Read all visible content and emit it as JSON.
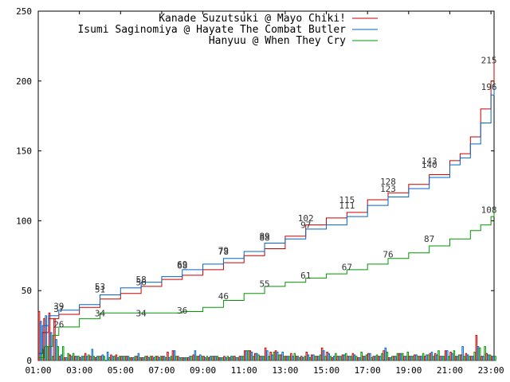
{
  "chart_data": {
    "type": "line",
    "title": "",
    "xlabel": "",
    "ylabel": "",
    "ylim": [
      0,
      250
    ],
    "xlim_hours": [
      1,
      23.15
    ],
    "y_ticks": [
      0,
      50,
      100,
      150,
      200,
      250
    ],
    "x_ticks": [
      {
        "hour": 1,
        "label": "01:00"
      },
      {
        "hour": 3,
        "label": "03:00"
      },
      {
        "hour": 5,
        "label": "05:00"
      },
      {
        "hour": 7,
        "label": "07:00"
      },
      {
        "hour": 9,
        "label": "09:00"
      },
      {
        "hour": 11,
        "label": "11:00"
      },
      {
        "hour": 13,
        "label": "13:00"
      },
      {
        "hour": 15,
        "label": "15:00"
      },
      {
        "hour": 17,
        "label": "17:00"
      },
      {
        "hour": 19,
        "label": "19:00"
      },
      {
        "hour": 21,
        "label": "21:00"
      },
      {
        "hour": 23,
        "label": "23:00"
      }
    ],
    "grid": false,
    "legend_position": "top-right",
    "series": [
      {
        "name": "Kanade Suzutsuki @ Mayo Chiki!",
        "color": "#cc0000",
        "points": [
          [
            1,
            5
          ],
          [
            1.2,
            20
          ],
          [
            1.5,
            30
          ],
          [
            2,
            33
          ],
          [
            3,
            38
          ],
          [
            4,
            44
          ],
          [
            5,
            48
          ],
          [
            6,
            53
          ],
          [
            7,
            58
          ],
          [
            8,
            61
          ],
          [
            9,
            65
          ],
          [
            10,
            70
          ],
          [
            11,
            75
          ],
          [
            12,
            80
          ],
          [
            13,
            89
          ],
          [
            14,
            97
          ],
          [
            15,
            102
          ],
          [
            16,
            106
          ],
          [
            17,
            115
          ],
          [
            18,
            120
          ],
          [
            19,
            126
          ],
          [
            20,
            133
          ],
          [
            21,
            143
          ],
          [
            21.5,
            148
          ],
          [
            22,
            160
          ],
          [
            22.5,
            180
          ],
          [
            23,
            200
          ],
          [
            23.15,
            215
          ]
        ],
        "labels": [
          {
            "hour": 2,
            "text": "39",
            "y": 39
          },
          {
            "hour": 4,
            "text": "51",
            "y": 51
          },
          {
            "hour": 6,
            "text": "58",
            "y": 58
          },
          {
            "hour": 8,
            "text": "68",
            "y": 68
          },
          {
            "hour": 10,
            "text": "79",
            "y": 79
          },
          {
            "hour": 12,
            "text": "89",
            "y": 89
          },
          {
            "hour": 14,
            "text": "102",
            "y": 102
          },
          {
            "hour": 16,
            "text": "115",
            "y": 115
          },
          {
            "hour": 18,
            "text": "128",
            "y": 128
          },
          {
            "hour": 20,
            "text": "143",
            "y": 143
          },
          {
            "hour": 22.9,
            "text": "215",
            "y": 215
          }
        ]
      },
      {
        "name": "Isumi Saginomiya @ Hayate The Combat Butler",
        "color": "#0066cc",
        "points": [
          [
            1,
            5
          ],
          [
            1.2,
            25
          ],
          [
            1.5,
            32
          ],
          [
            2,
            36
          ],
          [
            3,
            40
          ],
          [
            4,
            47
          ],
          [
            5,
            52
          ],
          [
            6,
            56
          ],
          [
            7,
            60
          ],
          [
            8,
            65
          ],
          [
            9,
            69
          ],
          [
            10,
            73
          ],
          [
            11,
            78
          ],
          [
            12,
            84
          ],
          [
            13,
            87
          ],
          [
            14,
            94
          ],
          [
            15,
            97
          ],
          [
            16,
            103
          ],
          [
            17,
            111
          ],
          [
            18,
            117
          ],
          [
            19,
            123
          ],
          [
            20,
            131
          ],
          [
            21,
            140
          ],
          [
            21.5,
            145
          ],
          [
            22,
            155
          ],
          [
            22.5,
            170
          ],
          [
            23,
            190
          ],
          [
            23.15,
            196
          ]
        ],
        "labels": [
          {
            "hour": 2,
            "text": "37",
            "y": 37
          },
          {
            "hour": 4,
            "text": "53",
            "y": 53
          },
          {
            "hour": 6,
            "text": "56",
            "y": 56
          },
          {
            "hour": 8,
            "text": "69",
            "y": 69
          },
          {
            "hour": 10,
            "text": "78",
            "y": 78
          },
          {
            "hour": 12,
            "text": "88",
            "y": 88
          },
          {
            "hour": 14,
            "text": "97",
            "y": 97
          },
          {
            "hour": 16,
            "text": "111",
            "y": 111
          },
          {
            "hour": 18,
            "text": "123",
            "y": 123
          },
          {
            "hour": 20,
            "text": "140",
            "y": 140
          },
          {
            "hour": 22.9,
            "text": "196",
            "y": 196
          }
        ]
      },
      {
        "name": "Hanyuu @ When They Cry",
        "color": "#009900",
        "points": [
          [
            1,
            2
          ],
          [
            1.3,
            10
          ],
          [
            1.7,
            18
          ],
          [
            2,
            24
          ],
          [
            3,
            30
          ],
          [
            4,
            34
          ],
          [
            5,
            34
          ],
          [
            6,
            34
          ],
          [
            7,
            34
          ],
          [
            8,
            35
          ],
          [
            9,
            38
          ],
          [
            10,
            43
          ],
          [
            11,
            48
          ],
          [
            12,
            53
          ],
          [
            13,
            56
          ],
          [
            14,
            59
          ],
          [
            15,
            62
          ],
          [
            16,
            65
          ],
          [
            17,
            69
          ],
          [
            18,
            73
          ],
          [
            19,
            77
          ],
          [
            20,
            82
          ],
          [
            21,
            87
          ],
          [
            22,
            93
          ],
          [
            22.5,
            97
          ],
          [
            23,
            103
          ],
          [
            23.15,
            108
          ]
        ],
        "labels": [
          {
            "hour": 2,
            "text": "26",
            "y": 26
          },
          {
            "hour": 4,
            "text": "34",
            "y": 34
          },
          {
            "hour": 6,
            "text": "34",
            "y": 34
          },
          {
            "hour": 8,
            "text": "36",
            "y": 36
          },
          {
            "hour": 10,
            "text": "46",
            "y": 46
          },
          {
            "hour": 12,
            "text": "55",
            "y": 55
          },
          {
            "hour": 14,
            "text": "61",
            "y": 61
          },
          {
            "hour": 16,
            "text": "67",
            "y": 67
          },
          {
            "hour": 18,
            "text": "76",
            "y": 76
          },
          {
            "hour": 20,
            "text": "87",
            "y": 87
          },
          {
            "hour": 22.9,
            "text": "108",
            "y": 108
          }
        ]
      }
    ],
    "histogram": {
      "bin_hours": 0.25,
      "start_hour": 1,
      "red": [
        35,
        30,
        34,
        30,
        3,
        2,
        4,
        3,
        2,
        5,
        3,
        2,
        3,
        0,
        4,
        4,
        3,
        3,
        2,
        3,
        2,
        3,
        3,
        3,
        3,
        6,
        7,
        3,
        2,
        2,
        4,
        3,
        3,
        2,
        3,
        2,
        3,
        2,
        3,
        3,
        7,
        7,
        5,
        3,
        9,
        6,
        7,
        4,
        3,
        5,
        3,
        3,
        6,
        4,
        3,
        9,
        6,
        2,
        3,
        4,
        3,
        5,
        2,
        3,
        5,
        3,
        3,
        7,
        2,
        3,
        5,
        3,
        3,
        4,
        3,
        3,
        5,
        5,
        3,
        7,
        6,
        3,
        4,
        5,
        3,
        18,
        3,
        5,
        3,
        52,
        14
      ],
      "blue": [
        28,
        32,
        20,
        15,
        4,
        2,
        3,
        3,
        3,
        3,
        8,
        3,
        4,
        6,
        3,
        2,
        3,
        3,
        2,
        5,
        2,
        2,
        2,
        2,
        3,
        2,
        7,
        2,
        2,
        3,
        7,
        4,
        2,
        3,
        3,
        2,
        2,
        3,
        2,
        3,
        7,
        6,
        5,
        3,
        7,
        4,
        6,
        6,
        3,
        3,
        3,
        2,
        4,
        4,
        3,
        7,
        5,
        3,
        3,
        4,
        3,
        4,
        2,
        3,
        5,
        3,
        3,
        9,
        2,
        3,
        5,
        3,
        3,
        4,
        3,
        4,
        6,
        4,
        3,
        7,
        5,
        3,
        10,
        4,
        3,
        10,
        3,
        4,
        3,
        42,
        8
      ],
      "green": [
        8,
        10,
        3,
        10,
        10,
        5,
        5,
        3,
        3,
        4,
        3,
        3,
        3,
        2,
        3,
        3,
        3,
        2,
        3,
        2,
        3,
        3,
        3,
        3,
        2,
        3,
        3,
        2,
        2,
        3,
        3,
        3,
        3,
        3,
        3,
        2,
        3,
        3,
        2,
        3,
        7,
        3,
        4,
        3,
        3,
        6,
        4,
        3,
        3,
        5,
        2,
        3,
        2,
        3,
        4,
        3,
        3,
        5,
        3,
        5,
        3,
        3,
        6,
        4,
        2,
        4,
        5,
        6,
        3,
        5,
        5,
        6,
        3,
        3,
        5,
        4,
        3,
        7,
        3,
        3,
        7,
        4,
        3,
        3,
        6,
        9,
        10,
        4,
        3,
        3,
        14
      ]
    }
  }
}
